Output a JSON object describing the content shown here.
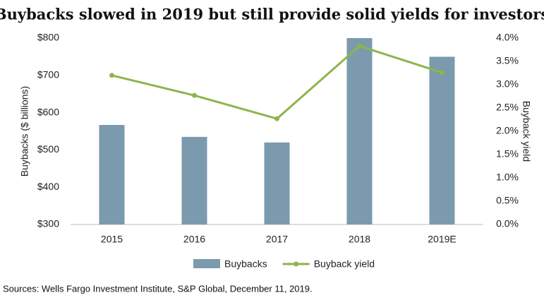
{
  "chart_data": {
    "type": "bar",
    "title": "Buybacks slowed in 2019 but still provide solid yields for investors",
    "source": "Sources: Wells Fargo Investment Institute, S&P Global, December 11, 2019.",
    "categories": [
      "2015",
      "2016",
      "2017",
      "2018",
      "2019E"
    ],
    "series": [
      {
        "name": "Buybacks",
        "type": "bar",
        "color": "#7b9aae",
        "values": [
          567,
          535,
          520,
          800,
          750
        ]
      },
      {
        "name": "Buyback yield",
        "type": "line",
        "axis": "y2",
        "color": "#8db54a",
        "values": [
          3.2,
          2.77,
          2.27,
          3.83,
          3.26
        ]
      }
    ],
    "ylabel": "Buybacks ($ billions)",
    "y2label": "Buyback yield",
    "ylim": [
      300,
      800
    ],
    "yticks": [
      {
        "value": 300,
        "label": "$300"
      },
      {
        "value": 400,
        "label": "$400"
      },
      {
        "value": 500,
        "label": "$500"
      },
      {
        "value": 600,
        "label": "$600"
      },
      {
        "value": 700,
        "label": "$700"
      },
      {
        "value": 800,
        "label": "$800"
      }
    ],
    "y2lim": [
      0,
      4
    ],
    "y2ticks": [
      {
        "value": 0,
        "label": "0.0%"
      },
      {
        "value": 0.5,
        "label": "0.5%"
      },
      {
        "value": 1,
        "label": "1.0%"
      },
      {
        "value": 1.5,
        "label": "1.5%"
      },
      {
        "value": 2,
        "label": "2.0%"
      },
      {
        "value": 2.5,
        "label": "2.5%"
      },
      {
        "value": 3,
        "label": "3.0%"
      },
      {
        "value": 3.5,
        "label": "3.5%"
      },
      {
        "value": 4,
        "label": "4.0%"
      }
    ],
    "grid": false,
    "legend": "bottom"
  }
}
